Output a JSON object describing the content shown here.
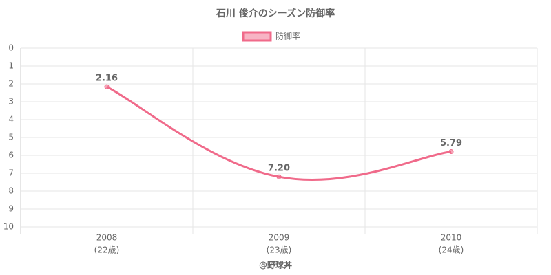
{
  "chart_data": {
    "type": "line",
    "title": "石川 俊介のシーズン防御率",
    "categories": [
      "2008",
      "2009",
      "2010"
    ],
    "category_sublabels": [
      "(22歳)",
      "(23歳)",
      "(24歳)"
    ],
    "series": [
      {
        "name": "防御率",
        "color": "#f06a8a",
        "values": [
          2.16,
          7.2,
          5.79
        ],
        "value_labels": [
          "2.16",
          "7.20",
          "5.79"
        ]
      }
    ],
    "ylim": [
      0,
      10
    ],
    "yticks": [
      0,
      1,
      2,
      3,
      4,
      5,
      6,
      7,
      8,
      9,
      10
    ],
    "y_reversed": true,
    "grid": true,
    "legend": "top",
    "footer": "@野球丼"
  }
}
